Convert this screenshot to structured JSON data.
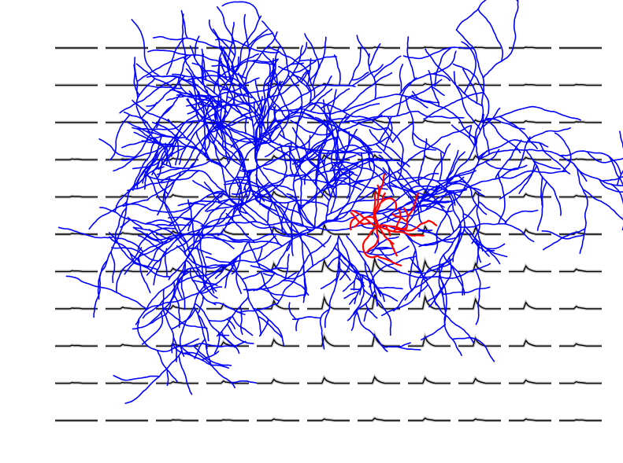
{
  "figure": {
    "background": "#ffffff",
    "trace_color": "#000000",
    "trace_shadow_color": "#9a9a9a",
    "axon_color": "#0000ff",
    "dendrite_color": "#ff0000"
  },
  "grid": {
    "rows": 11,
    "cols": 11,
    "peak_amplitudes": [
      [
        0,
        0,
        0,
        0,
        1,
        1,
        1,
        1,
        1,
        1,
        0
      ],
      [
        0,
        0,
        1,
        1,
        2,
        2,
        2,
        2,
        2,
        1,
        1
      ],
      [
        0,
        1,
        1,
        2,
        3,
        3,
        4,
        3,
        3,
        2,
        1
      ],
      [
        1,
        1,
        2,
        3,
        5,
        6,
        6,
        5,
        5,
        3,
        1
      ],
      [
        1,
        2,
        3,
        5,
        7,
        9,
        9,
        7,
        6,
        4,
        2
      ],
      [
        1,
        2,
        4,
        6,
        9,
        12,
        13,
        10,
        8,
        6,
        3
      ],
      [
        1,
        2,
        4,
        6,
        10,
        14,
        16,
        13,
        10,
        7,
        3
      ],
      [
        1,
        2,
        4,
        6,
        10,
        14,
        18,
        15,
        12,
        8,
        3
      ],
      [
        1,
        2,
        3,
        5,
        8,
        12,
        14,
        12,
        10,
        7,
        3
      ],
      [
        1,
        1,
        2,
        3,
        5,
        7,
        8,
        7,
        6,
        4,
        2
      ],
      [
        0,
        0,
        1,
        1,
        2,
        2,
        3,
        3,
        2,
        2,
        1
      ]
    ]
  }
}
